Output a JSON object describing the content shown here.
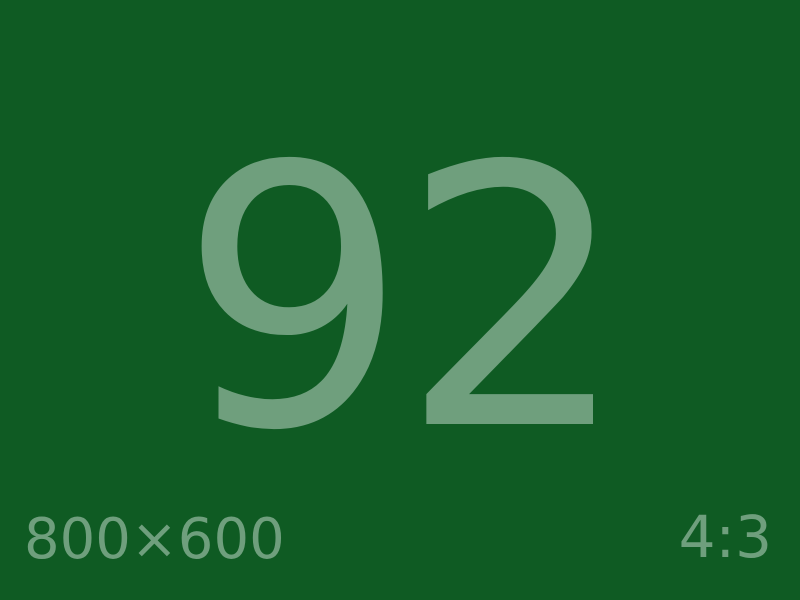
{
  "display": {
    "number": "92",
    "dimensions": "800×600",
    "aspect_ratio": "4:3"
  },
  "colors": {
    "background": "#0f5b23",
    "text": "#6f9f7d"
  }
}
